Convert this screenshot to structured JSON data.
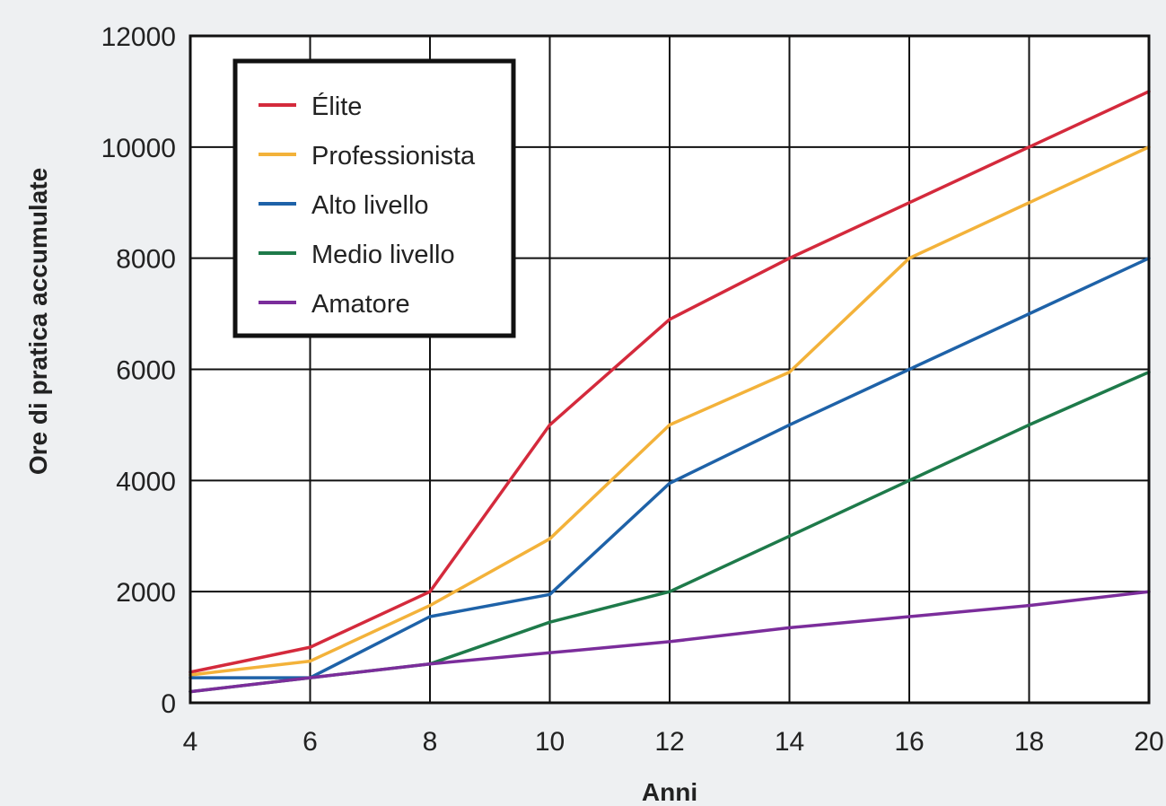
{
  "chart_data": {
    "type": "line",
    "xlabel": "Anni",
    "ylabel": "Ore di pratica accumulate",
    "xlim": [
      4,
      20
    ],
    "ylim": [
      0,
      12000
    ],
    "x_ticks": [
      "4",
      "6",
      "8",
      "10",
      "12",
      "14",
      "16",
      "18",
      "20"
    ],
    "y_ticks": [
      "0",
      "2000",
      "4000",
      "6000",
      "8000",
      "10000",
      "12000"
    ],
    "grid": true,
    "legend_position": "top-left",
    "series": [
      {
        "name": "Élite",
        "color": "#d42a3c",
        "x": [
          4,
          6,
          8,
          10,
          12,
          14,
          16,
          18,
          20
        ],
        "y": [
          550,
          1000,
          2000,
          5000,
          6900,
          8000,
          9000,
          10000,
          11000
        ]
      },
      {
        "name": "Professionista",
        "color": "#f3b23a",
        "x": [
          4,
          6,
          8,
          10,
          12,
          14,
          16,
          18,
          20
        ],
        "y": [
          500,
          750,
          1750,
          2950,
          5000,
          5950,
          8000,
          9000,
          10000
        ]
      },
      {
        "name": "Alto livello",
        "color": "#1e62a8",
        "x": [
          4,
          6,
          8,
          10,
          12,
          14,
          16,
          18,
          20
        ],
        "y": [
          450,
          450,
          1550,
          1950,
          3950,
          5000,
          6000,
          7000,
          8000
        ]
      },
      {
        "name": "Medio livello",
        "color": "#1e7a4a",
        "x": [
          4,
          6,
          8,
          10,
          12,
          14,
          16,
          18,
          20
        ],
        "y": [
          200,
          450,
          700,
          1450,
          2000,
          3000,
          4000,
          5000,
          5950
        ]
      },
      {
        "name": "Amatore",
        "color": "#7b2d9b",
        "x": [
          4,
          6,
          8,
          10,
          12,
          14,
          16,
          18,
          20
        ],
        "y": [
          200,
          450,
          700,
          900,
          1100,
          1350,
          1550,
          1750,
          2000
        ]
      }
    ]
  }
}
